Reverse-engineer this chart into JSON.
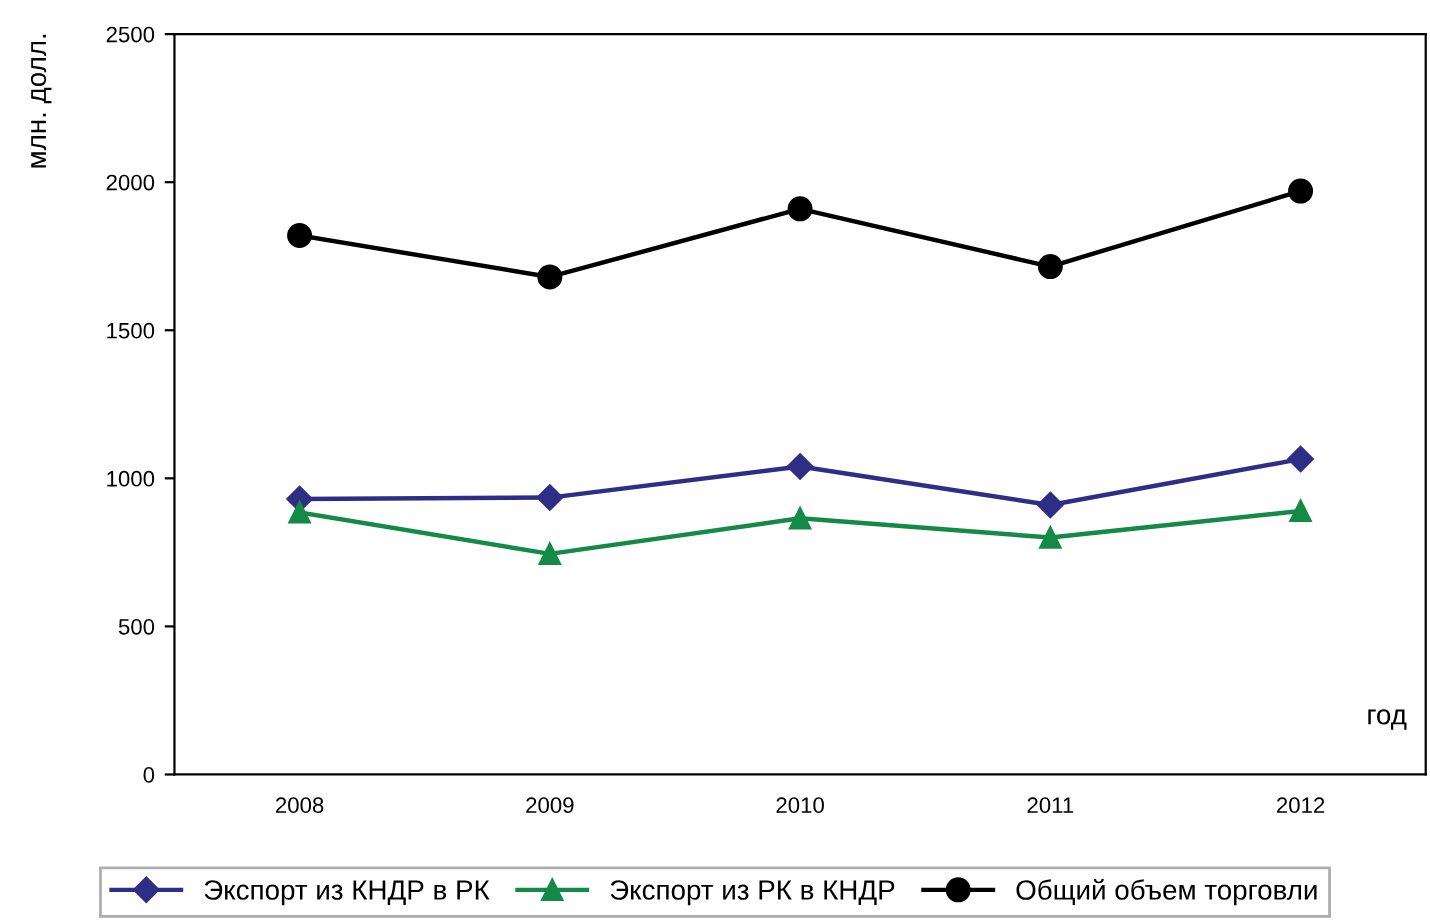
{
  "chart_data": {
    "type": "line",
    "xlabel": "год",
    "ylabel": "млн. долл.",
    "categories": [
      "2008",
      "2009",
      "2010",
      "2011",
      "2012"
    ],
    "series": [
      {
        "name": "Экспорт из КНДР в РК",
        "color": "#2e2e86",
        "marker": "diamond",
        "values": [
          930,
          935,
          1040,
          910,
          1065
        ]
      },
      {
        "name": "Экспорт из РК в КНДР",
        "color": "#138a45",
        "marker": "triangle",
        "values": [
          885,
          745,
          865,
          800,
          890
        ]
      },
      {
        "name": "Общий объем торговли",
        "color": "#000000",
        "marker": "circle",
        "values": [
          1820,
          1680,
          1910,
          1715,
          1970
        ]
      }
    ],
    "ylim": [
      0,
      2500
    ],
    "yticks": [
      0,
      500,
      1000,
      1500,
      2000,
      2500
    ],
    "grid": false,
    "legend": "bottom",
    "line_style": "solid"
  }
}
